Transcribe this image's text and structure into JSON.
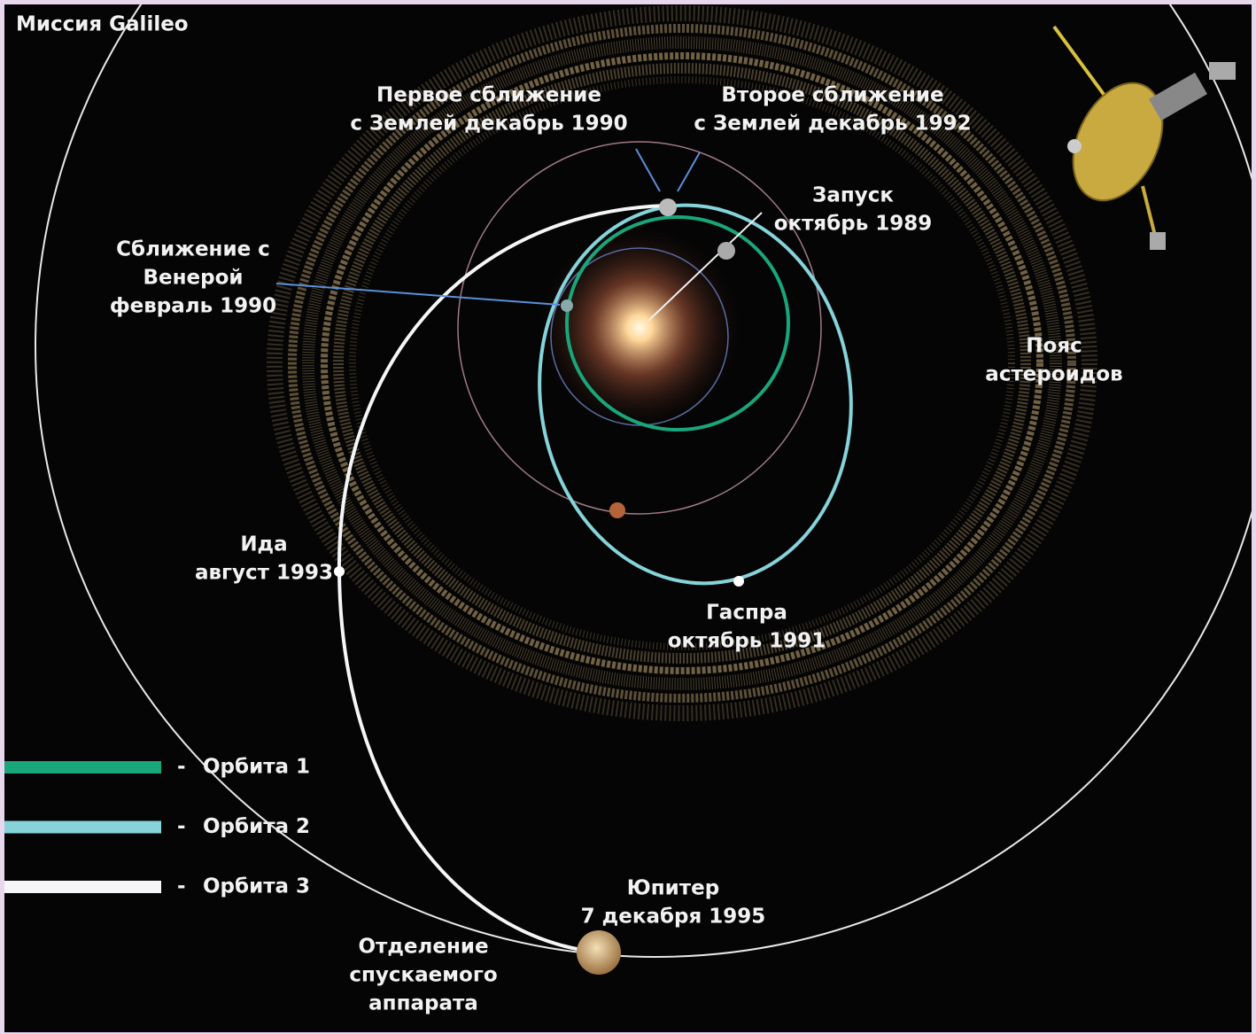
{
  "title": "Миссия Galileo",
  "labels": [
    {
      "name": "earth-flyby-1",
      "lines": [
        "Первое сближение",
        "с Землей декабрь 1990"
      ]
    },
    {
      "name": "earth-flyby-2",
      "lines": [
        "Второе сближение",
        "с Землей декабрь 1992"
      ]
    },
    {
      "name": "launch",
      "lines": [
        "Запуск",
        "октябрь 1989"
      ]
    },
    {
      "name": "venus-flyby",
      "lines": [
        "Сближение с",
        "Венерой",
        "февраль 1990"
      ]
    },
    {
      "name": "asteroid-belt",
      "lines": [
        "Пояс",
        "астероидов"
      ]
    },
    {
      "name": "ida",
      "lines": [
        "Ида",
        "август 1993"
      ]
    },
    {
      "name": "gaspra",
      "lines": [
        "Гаспра",
        "октябрь 1991"
      ]
    },
    {
      "name": "jupiter",
      "lines": [
        "Юпитер",
        "7 декабря 1995"
      ]
    },
    {
      "name": "probe-release",
      "lines": [
        "Отделение",
        "спускаемого",
        "аппарата"
      ]
    }
  ],
  "legend": [
    {
      "marker": "-",
      "label": "Орбита 1",
      "color": "#1aa57a"
    },
    {
      "marker": "-",
      "label": "Орбита 2",
      "color": "#86d3da"
    },
    {
      "marker": "-",
      "label": "Орбита 3",
      "color": "#f4f6f8"
    }
  ]
}
